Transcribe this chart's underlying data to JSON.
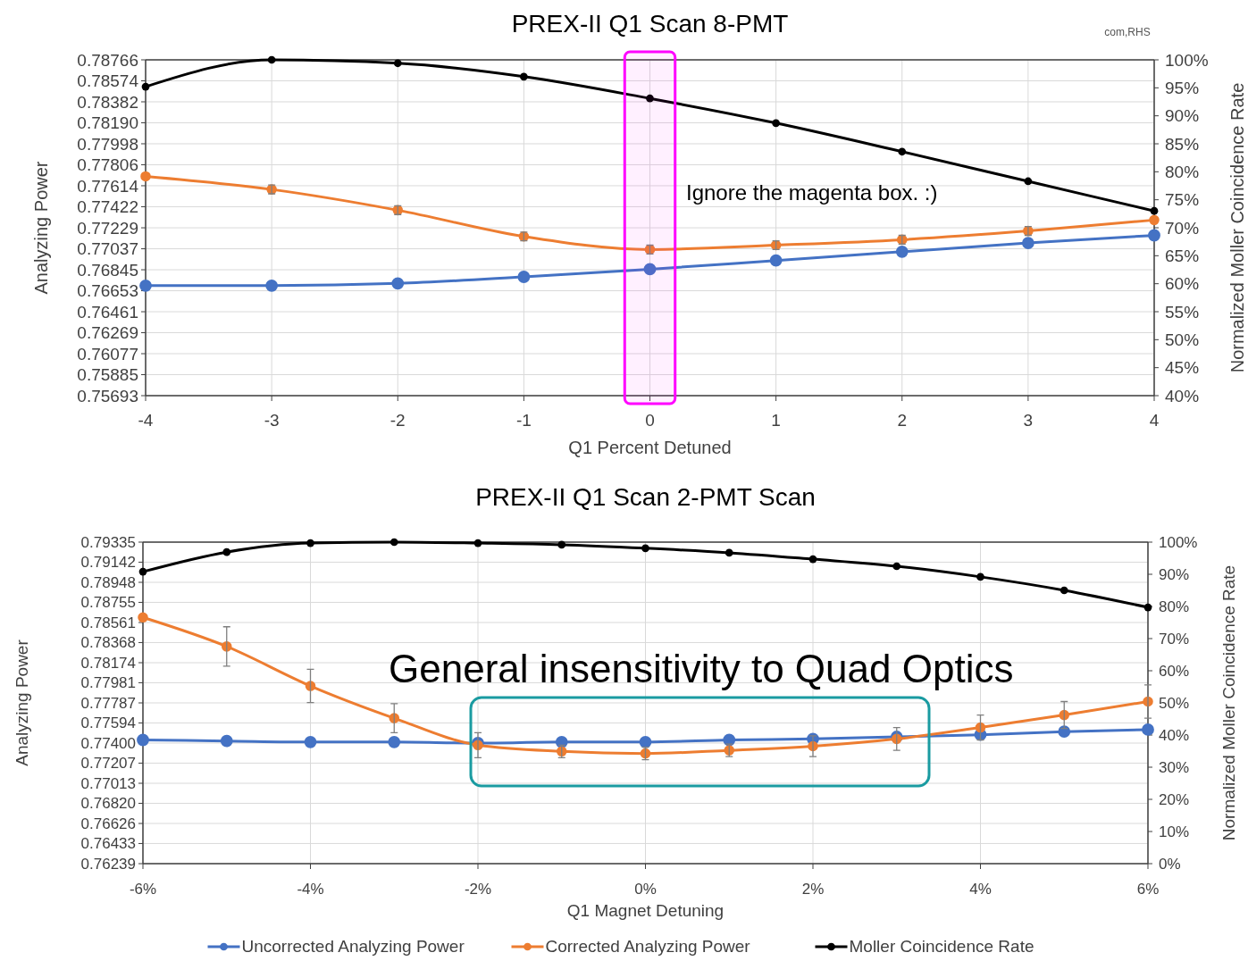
{
  "chart_data": [
    {
      "type": "line",
      "title": "PREX-II Q1 Scan 8-PMT",
      "xlabel": "Q1 Percent Detuned",
      "ylabel": "Analyzing Power",
      "y2label": "Normalized Moller Coincidence Rate",
      "annotations": [
        "com,RHS",
        "Ignore the magenta box. :)"
      ],
      "x": [
        -4,
        -3,
        -2,
        -1,
        0,
        1,
        2,
        3,
        4
      ],
      "xlim": [
        -4,
        4
      ],
      "xticks": [
        -4,
        -3,
        -2,
        -1,
        0,
        1,
        2,
        3,
        4
      ],
      "ylim": [
        0.75693,
        0.78766
      ],
      "yticks": [
        0.75693,
        0.75885,
        0.76077,
        0.76269,
        0.76461,
        0.76653,
        0.76845,
        0.77037,
        0.77229,
        0.77422,
        0.77614,
        0.77806,
        0.77998,
        {
          "value": 0.7819,
          "label": "0.78190"
        },
        0.78382,
        0.78574,
        0.78766
      ],
      "y2lim": [
        40,
        100
      ],
      "y2ticks": [
        {
          "value": 40,
          "label": "40%"
        },
        {
          "value": 45,
          "label": "45%"
        },
        {
          "value": 50,
          "label": "50%"
        },
        {
          "value": 55,
          "label": "55%"
        },
        {
          "value": 60,
          "label": "60%"
        },
        {
          "value": 65,
          "label": "65%"
        },
        {
          "value": 70,
          "label": "70%"
        },
        {
          "value": 75,
          "label": "75%"
        },
        {
          "value": 80,
          "label": "80%"
        },
        {
          "value": 85,
          "label": "85%"
        },
        {
          "value": 90,
          "label": "90%"
        },
        {
          "value": 95,
          "label": "95%"
        },
        {
          "value": 100,
          "label": "100%"
        }
      ],
      "bands": [
        {
          "axis": "x",
          "from": -0.2,
          "to": 0.2,
          "color": "#ff00ff"
        }
      ],
      "grid": true,
      "legend": false,
      "marker": "circle",
      "line_style": "solid",
      "series": [
        {
          "color": "#4472c4",
          "values": [
            0.767,
            0.767,
            0.7672,
            0.7678,
            0.7685,
            0.7693,
            0.7701,
            0.7709,
            0.7716
          ]
        },
        {
          "color": "#ed7d31",
          "values": [
            0.777,
            0.7758,
            0.7739,
            0.7715,
            0.7703,
            0.7707,
            0.7712,
            0.772,
            0.773
          ],
          "errors": [
            null,
            0.0004,
            0.0004,
            0.0004,
            0.0004,
            0.0004,
            0.0004,
            0.0004,
            null
          ]
        },
        {
          "color": "#000000",
          "axis": "y2",
          "values": [
            95.2,
            100,
            99.4,
            97.0,
            93.1,
            88.7,
            83.6,
            78.3,
            73.0
          ]
        }
      ]
    },
    {
      "type": "line",
      "title": "PREX-II Q1 Scan 2-PMT Scan",
      "xlabel": "Q1 Magnet Detuning",
      "ylabel": "Analyzing Power",
      "y2label": "Normalized Moller Coincidence Rate",
      "annotations": [
        "General insensitivity to Quad Optics"
      ],
      "x": [
        -6,
        -5,
        -4,
        -3,
        -2,
        -1,
        0,
        1,
        2,
        3,
        4,
        5,
        6
      ],
      "xlim": [
        -6,
        6
      ],
      "xticks": [
        {
          "value": -6,
          "label": "-6%"
        },
        {
          "value": -4,
          "label": "-4%"
        },
        {
          "value": -2,
          "label": "-2%"
        },
        {
          "value": 0,
          "label": "0%"
        },
        {
          "value": 2,
          "label": "2%"
        },
        {
          "value": 4,
          "label": "4%"
        },
        {
          "value": 6,
          "label": "6%"
        }
      ],
      "ylim": [
        0.76239,
        0.79335
      ],
      "yticks": [
        0.76239,
        0.76433,
        0.76626,
        {
          "value": 0.7682,
          "label": "0.76820"
        },
        0.77013,
        0.77207,
        {
          "value": 0.774,
          "label": "0.77400"
        },
        0.77594,
        0.77787,
        0.77981,
        0.78174,
        0.78368,
        0.78561,
        0.78755,
        0.78948,
        0.79142,
        0.79335
      ],
      "y2lim": [
        0,
        100
      ],
      "y2ticks": [
        {
          "value": 0,
          "label": "0%"
        },
        {
          "value": 10,
          "label": "10%"
        },
        {
          "value": 20,
          "label": "20%"
        },
        {
          "value": 30,
          "label": "30%"
        },
        {
          "value": 40,
          "label": "40%"
        },
        {
          "value": 50,
          "label": "50%"
        },
        {
          "value": 60,
          "label": "60%"
        },
        {
          "value": 70,
          "label": "70%"
        },
        {
          "value": 80,
          "label": "80%"
        },
        {
          "value": 90,
          "label": "90%"
        },
        {
          "value": 100,
          "label": "100%"
        }
      ],
      "grid": true,
      "legend": "bottom",
      "marker": "circle",
      "line_style": "solid",
      "series": [
        {
          "name": "Uncorrected Analyzing Power",
          "color": "#4472c4",
          "values": [
            0.7743,
            0.7742,
            0.7741,
            0.7741,
            0.774,
            0.7741,
            0.7741,
            0.7743,
            0.7744,
            0.7746,
            0.7748,
            0.7751,
            0.7753
          ]
        },
        {
          "name": "Corrected Analyzing Power",
          "color": "#ed7d31",
          "values": [
            0.7861,
            0.7833,
            0.7795,
            0.7764,
            0.7738,
            0.7732,
            0.773,
            0.7733,
            0.7737,
            0.7744,
            0.7755,
            0.7767,
            0.778
          ],
          "errors": [
            null,
            0.0019,
            0.0016,
            0.0014,
            0.0012,
            0.0006,
            0.0006,
            0.0006,
            0.001,
            0.0011,
            0.0012,
            0.0013,
            0.0016
          ]
        },
        {
          "name": "Moller Coincidence Rate",
          "color": "#000000",
          "axis": "y2",
          "values": [
            90.8,
            96.9,
            99.7,
            100,
            99.7,
            99.2,
            98.1,
            96.7,
            94.7,
            92.5,
            89.2,
            85.0,
            79.7
          ]
        }
      ]
    }
  ]
}
